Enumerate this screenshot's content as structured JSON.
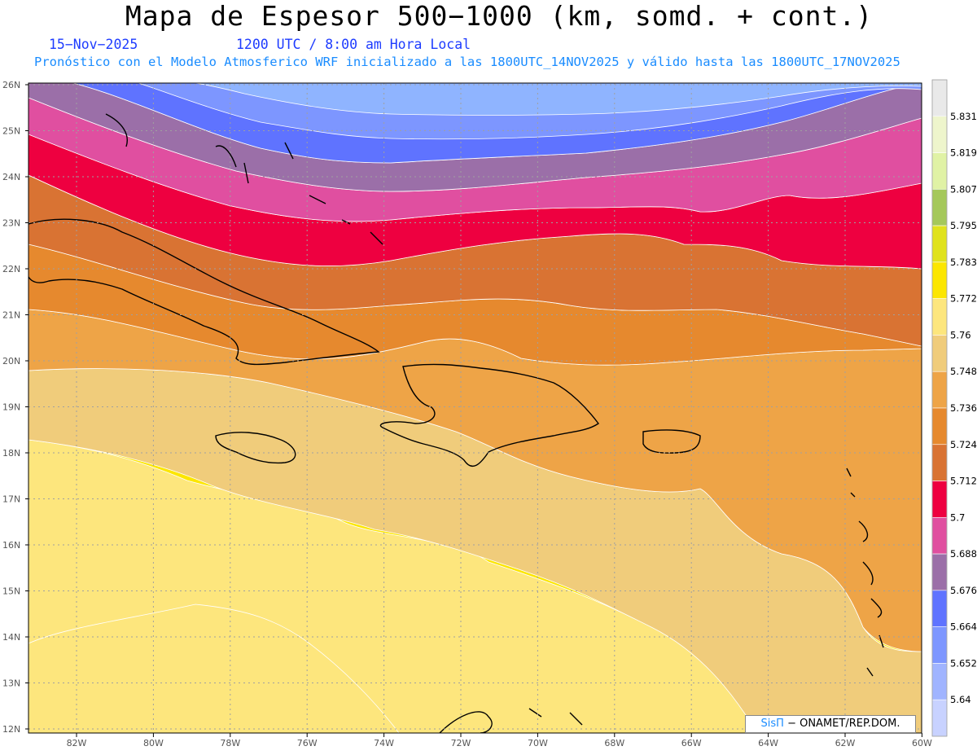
{
  "title": "Mapa de Espesor 500−1000 (km, somd. + cont.)",
  "date": "15−Nov−2025",
  "time": "1200 UTC / 8:00 am Hora Local",
  "run_info": "Pronóstico con el Modelo Atmosferico WRF inicializado a las 1800UTC_14NOV2025 y válido hasta las  1800UTC_17NOV2025",
  "watermark": {
    "brand": "SisΠ",
    "org": " − ONAMET/REP.DOM."
  },
  "lon_labels": [
    "82W",
    "80W",
    "78W",
    "76W",
    "74W",
    "72W",
    "70W",
    "68W",
    "66W",
    "64W",
    "62W",
    "60W"
  ],
  "lat_labels": [
    "26N",
    "25N",
    "24N",
    "23N",
    "22N",
    "21N",
    "20N",
    "19N",
    "18N",
    "17N",
    "16N",
    "15N",
    "14N",
    "13N",
    "12N"
  ],
  "colorbar": {
    "levels": [
      "5.64",
      "5.652",
      "5.664",
      "5.676",
      "5.688",
      "5.7",
      "5.712",
      "5.724",
      "5.736",
      "5.748",
      "5.76",
      "5.772",
      "5.783",
      "5.795",
      "5.807",
      "5.819",
      "5.831"
    ],
    "colors": [
      "#c8d2ff",
      "#a0b4ff",
      "#7d96ff",
      "#5f73ff",
      "#9b6fa8",
      "#e04fa0",
      "#ee0040",
      "#d97333",
      "#e6892e",
      "#eea447",
      "#f0cc7b",
      "#fde67d",
      "#fce600",
      "#e0e21c",
      "#a5c85a",
      "#e0f2a5",
      "#eef5cc",
      "#e9e9e9"
    ]
  },
  "thickness_bands_north_to_south": [
    {
      "label": "<5.64",
      "color": "#8fb4ff"
    },
    {
      "label": "5.652",
      "color": "#7d96ff"
    },
    {
      "label": "5.664",
      "color": "#5f73ff"
    },
    {
      "label": "5.676",
      "color": "#9b6fa8"
    },
    {
      "label": "5.688",
      "color": "#e04fa0"
    },
    {
      "label": "5.7",
      "color": "#ee0040"
    },
    {
      "label": "5.712",
      "color": "#d97333"
    },
    {
      "label": "5.724",
      "color": "#e6892e"
    },
    {
      "label": "5.736",
      "color": "#eea447"
    },
    {
      "label": "5.748",
      "color": "#f0cc7b"
    },
    {
      "label": "5.76",
      "color": "#fde67d"
    },
    {
      "label": "5.772",
      "color": "#fce600"
    }
  ]
}
